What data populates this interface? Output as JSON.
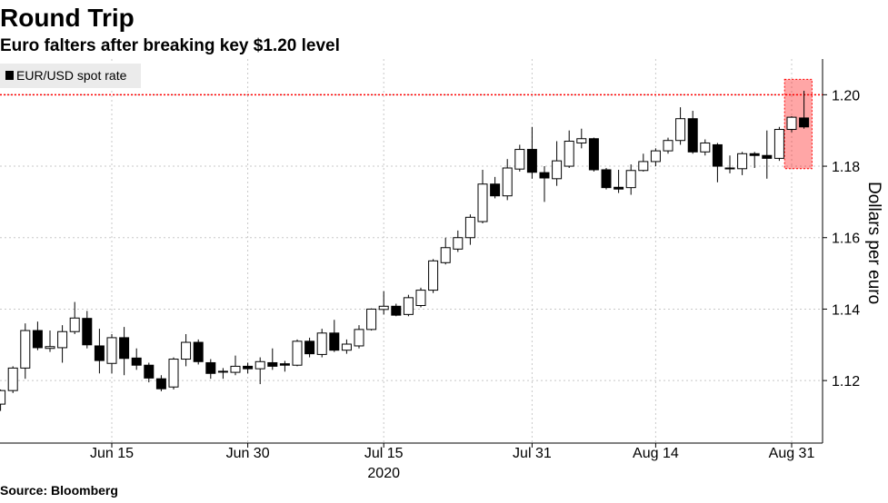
{
  "chart_data": {
    "type": "candlestick",
    "title": "Round Trip",
    "subtitle": "Euro falters after breaking key $1.20 level",
    "source": "Source: Bloomberg",
    "y_label": "Dollars per euro",
    "x_label": "2020",
    "categories": [
      "2020-06-02",
      "2020-06-03",
      "2020-06-04",
      "2020-06-05",
      "2020-06-08",
      "2020-06-09",
      "2020-06-10",
      "2020-06-11",
      "2020-06-12",
      "2020-06-15",
      "2020-06-16",
      "2020-06-17",
      "2020-06-18",
      "2020-06-19",
      "2020-06-22",
      "2020-06-23",
      "2020-06-24",
      "2020-06-25",
      "2020-06-26",
      "2020-06-29",
      "2020-06-30",
      "2020-07-01",
      "2020-07-02",
      "2020-07-03",
      "2020-07-06",
      "2020-07-07",
      "2020-07-08",
      "2020-07-09",
      "2020-07-10",
      "2020-07-13",
      "2020-07-14",
      "2020-07-15",
      "2020-07-16",
      "2020-07-17",
      "2020-07-20",
      "2020-07-21",
      "2020-07-22",
      "2020-07-23",
      "2020-07-24",
      "2020-07-27",
      "2020-07-28",
      "2020-07-29",
      "2020-07-30",
      "2020-07-31",
      "2020-08-03",
      "2020-08-04",
      "2020-08-05",
      "2020-08-06",
      "2020-08-07",
      "2020-08-10",
      "2020-08-11",
      "2020-08-12",
      "2020-08-13",
      "2020-08-14",
      "2020-08-17",
      "2020-08-18",
      "2020-08-19",
      "2020-08-20",
      "2020-08-21",
      "2020-08-24",
      "2020-08-25",
      "2020-08-26",
      "2020-08-27",
      "2020-08-28",
      "2020-08-31",
      "2020-09-01"
    ],
    "series": [
      {
        "name": "EUR/USD spot rate",
        "color": "#000000",
        "up_color": "#ffffff",
        "open": [
          1.1134,
          1.1172,
          1.1235,
          1.134,
          1.129,
          1.1292,
          1.1337,
          1.1374,
          1.1297,
          1.1248,
          1.132,
          1.1263,
          1.1243,
          1.1205,
          1.1182,
          1.126,
          1.1307,
          1.125,
          1.1226,
          1.1223,
          1.124,
          1.1233,
          1.125,
          1.1247,
          1.1243,
          1.131,
          1.1273,
          1.1333,
          1.1285,
          1.1297,
          1.1343,
          1.1399,
          1.1408,
          1.1385,
          1.141,
          1.1453,
          1.153,
          1.1568,
          1.16,
          1.1645,
          1.175,
          1.1717,
          1.1792,
          1.1847,
          1.1782,
          1.1765,
          1.18,
          1.1865,
          1.1877,
          1.179,
          1.1741,
          1.174,
          1.1788,
          1.1813,
          1.1843,
          1.1872,
          1.1933,
          1.184,
          1.186,
          1.1795,
          1.1793,
          1.1835,
          1.183,
          1.1822,
          1.1903,
          1.1935
        ],
        "high": [
          1.1175,
          1.124,
          1.136,
          1.1365,
          1.134,
          1.1355,
          1.142,
          1.1395,
          1.1345,
          1.133,
          1.135,
          1.129,
          1.125,
          1.1215,
          1.1265,
          1.133,
          1.1315,
          1.126,
          1.1235,
          1.127,
          1.125,
          1.1265,
          1.129,
          1.1255,
          1.1315,
          1.132,
          1.1345,
          1.137,
          1.1315,
          1.1355,
          1.1402,
          1.145,
          1.1415,
          1.144,
          1.146,
          1.154,
          1.16,
          1.162,
          1.1665,
          1.179,
          1.177,
          1.182,
          1.186,
          1.191,
          1.18,
          1.187,
          1.19,
          1.1905,
          1.188,
          1.1795,
          1.179,
          1.1805,
          1.1835,
          1.185,
          1.188,
          1.1965,
          1.1955,
          1.1875,
          1.1865,
          1.183,
          1.184,
          1.184,
          1.19,
          1.191,
          1.194,
          1.2011
        ],
        "low": [
          1.1115,
          1.1165,
          1.1205,
          1.1285,
          1.128,
          1.125,
          1.133,
          1.129,
          1.122,
          1.122,
          1.1215,
          1.123,
          1.1195,
          1.117,
          1.1175,
          1.124,
          1.1245,
          1.1205,
          1.1205,
          1.1215,
          1.122,
          1.119,
          1.123,
          1.1225,
          1.124,
          1.1265,
          1.1265,
          1.128,
          1.1275,
          1.129,
          1.134,
          1.1385,
          1.138,
          1.138,
          1.1405,
          1.1445,
          1.1525,
          1.156,
          1.158,
          1.164,
          1.171,
          1.1705,
          1.1785,
          1.1765,
          1.17,
          1.1745,
          1.1795,
          1.185,
          1.1785,
          1.1735,
          1.1725,
          1.172,
          1.1785,
          1.18,
          1.1835,
          1.186,
          1.1835,
          1.183,
          1.1755,
          1.178,
          1.1775,
          1.1795,
          1.1765,
          1.1815,
          1.1895,
          1.1905
        ],
        "close": [
          1.1172,
          1.1235,
          1.134,
          1.1292,
          1.1295,
          1.1337,
          1.1375,
          1.13,
          1.1256,
          1.132,
          1.1262,
          1.1243,
          1.1207,
          1.1177,
          1.126,
          1.1307,
          1.1253,
          1.122,
          1.1225,
          1.124,
          1.1233,
          1.1253,
          1.124,
          1.1243,
          1.131,
          1.1275,
          1.1333,
          1.1285,
          1.1302,
          1.1343,
          1.14,
          1.1408,
          1.1383,
          1.1432,
          1.1453,
          1.1535,
          1.1572,
          1.16,
          1.1657,
          1.175,
          1.1717,
          1.1795,
          1.1847,
          1.1783,
          1.1767,
          1.1815,
          1.187,
          1.1877,
          1.179,
          1.174,
          1.1736,
          1.1788,
          1.1813,
          1.1843,
          1.1872,
          1.1933,
          1.184,
          1.1865,
          1.18,
          1.1793,
          1.1835,
          1.183,
          1.1822,
          1.1903,
          1.1937,
          1.191
        ]
      }
    ],
    "ylim": [
      1.1025,
      1.21
    ],
    "yticks": [
      1.12,
      1.14,
      1.16,
      1.18,
      {
        "value": 1.2,
        "label": "1.20"
      }
    ],
    "xticks": [
      {
        "value": "2020-06-15",
        "label": "Jun 15"
      },
      {
        "value": "2020-06-30",
        "label": "Jun 30"
      },
      {
        "value": "2020-07-15",
        "label": "Jul 15"
      },
      {
        "value": "2020-07-31",
        "label": "Jul 31"
      },
      {
        "value": "2020-08-14",
        "label": "Aug 14"
      },
      {
        "value": "2020-08-31",
        "label": "Aug 31"
      }
    ],
    "reference_line": {
      "value": 1.2,
      "color": "#ff0000"
    },
    "highlight": {
      "categories": [
        "2020-08-31",
        "2020-09-01"
      ],
      "range": [
        1.1793,
        1.2043
      ],
      "color": "#ff0000"
    },
    "grid": true,
    "legend": "top-left"
  }
}
